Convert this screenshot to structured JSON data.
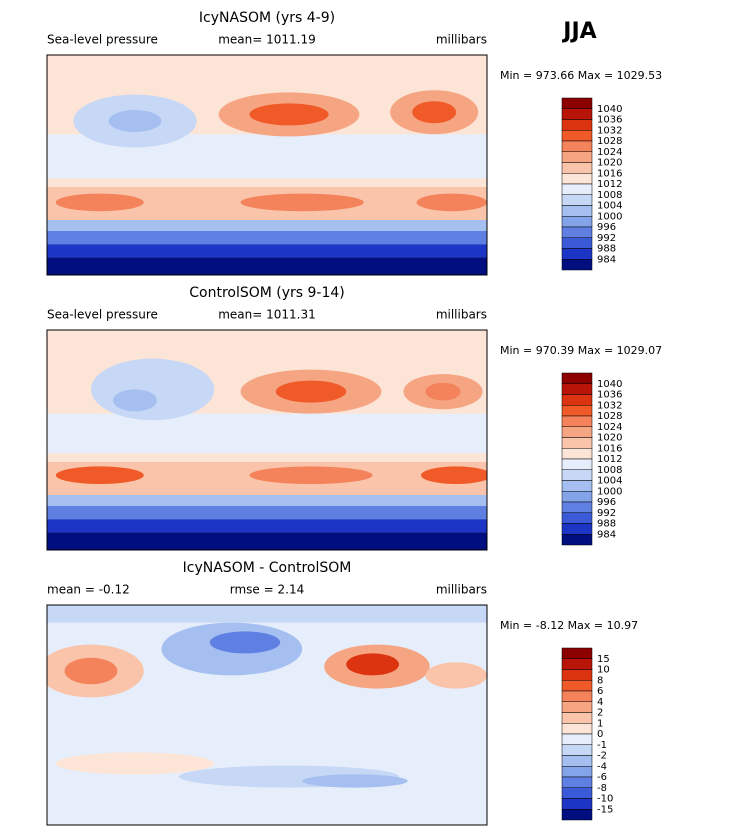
{
  "season": "JJA",
  "panels": [
    {
      "title": "IcyNASOM (yrs 4-9)",
      "left": "Sea-level pressure",
      "center": "mean= 1011.19",
      "right": "millibars",
      "minmax": "Min = 973.66 Max = 1029.53",
      "colorbar": {
        "labels": [
          "1040",
          "1036",
          "1032",
          "1028",
          "1024",
          "1020",
          "1016",
          "1012",
          "1008",
          "1004",
          "1000",
          "996",
          "992",
          "988",
          "984"
        ],
        "colors": [
          "#8c0000",
          "#b81408",
          "#dc3410",
          "#ef5a28",
          "#f4825a",
          "#f6a583",
          "#f9c4aa",
          "#fce4d6",
          "#e6eefb",
          "#c6d8f6",
          "#a5c0f0",
          "#84a4ea",
          "#5f80e2",
          "#3a5ad8",
          "#1c35c4",
          "#000e80"
        ]
      }
    },
    {
      "title": "ControlSOM (yrs 9-14)",
      "left": "Sea-level pressure",
      "center": "mean= 1011.31",
      "right": "millibars",
      "minmax": "Min = 970.39 Max = 1029.07",
      "colorbar": {
        "labels": [
          "1040",
          "1036",
          "1032",
          "1028",
          "1024",
          "1020",
          "1016",
          "1012",
          "1008",
          "1004",
          "1000",
          "996",
          "992",
          "988",
          "984"
        ],
        "colors": [
          "#8c0000",
          "#b81408",
          "#dc3410",
          "#ef5a28",
          "#f4825a",
          "#f6a583",
          "#f9c4aa",
          "#fce4d6",
          "#e6eefb",
          "#c6d8f6",
          "#a5c0f0",
          "#84a4ea",
          "#5f80e2",
          "#3a5ad8",
          "#1c35c4",
          "#000e80"
        ]
      }
    },
    {
      "title": "IcyNASOM - ControlSOM",
      "left": "mean =   -0.12",
      "center": "rmse =    2.14",
      "right": "millibars",
      "minmax": "Min =  -8.12 Max =  10.97",
      "colorbar": {
        "labels": [
          "15",
          "10",
          "8",
          "6",
          "4",
          "2",
          "1",
          "0",
          "-1",
          "-2",
          "-4",
          "-6",
          "-8",
          "-10",
          "-15"
        ],
        "colors": [
          "#8c0000",
          "#b81408",
          "#dc3410",
          "#ef5a28",
          "#f4825a",
          "#f6a583",
          "#f9c4aa",
          "#fce4d6",
          "#e6eefb",
          "#c6d8f6",
          "#a5c0f0",
          "#84a4ea",
          "#5f80e2",
          "#3a5ad8",
          "#1c35c4",
          "#000e80"
        ]
      }
    }
  ]
}
